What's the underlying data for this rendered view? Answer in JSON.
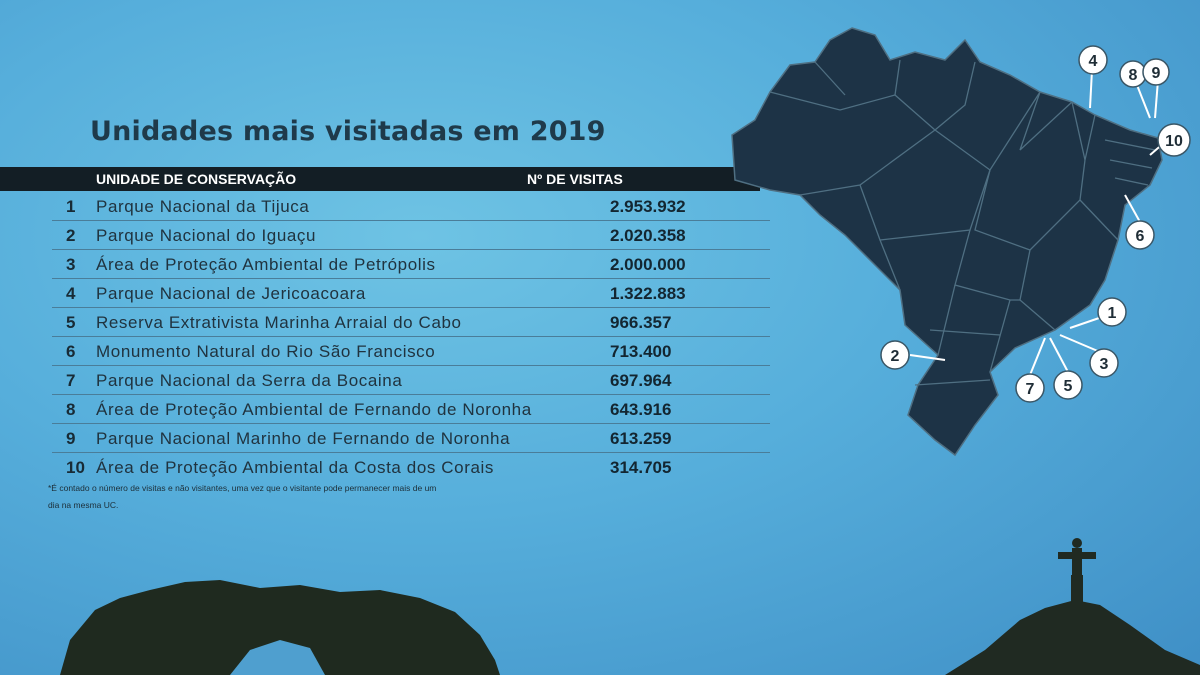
{
  "title": "Unidades mais visitadas em 2019",
  "table": {
    "col_unit": "UNIDADE DE CONSERVAÇÃO",
    "col_visits": "Nº DE VISITAS",
    "rows": [
      {
        "rank": "1",
        "name": "Parque Nacional da Tijuca",
        "visits": "2.953.932"
      },
      {
        "rank": "2",
        "name": "Parque Nacional do Iguaçu",
        "visits": "2.020.358"
      },
      {
        "rank": "3",
        "name": "Área de Proteção Ambiental de Petrópolis",
        "visits": "2.000.000"
      },
      {
        "rank": "4",
        "name": "Parque Nacional de Jericoacoara",
        "visits": "1.322.883"
      },
      {
        "rank": "5",
        "name": "Reserva Extrativista Marinha Arraial do Cabo",
        "visits": "966.357"
      },
      {
        "rank": "6",
        "name": "Monumento Natural do Rio São Francisco",
        "visits": "713.400"
      },
      {
        "rank": "7",
        "name": "Parque Nacional da Serra da Bocaina",
        "visits": "697.964"
      },
      {
        "rank": "8",
        "name": "Área de Proteção Ambiental de Fernando de Noronha",
        "visits": "643.916"
      },
      {
        "rank": "9",
        "name": "Parque Nacional Marinho de Fernando de Noronha",
        "visits": "613.259"
      },
      {
        "rank": "10",
        "name": "Área de Proteção Ambiental da Costa dos Corais",
        "visits": "314.705"
      }
    ]
  },
  "footnote": "*É contado o número de visitas e não visitantes, uma vez que o visitante pode permanecer mais de um dia na mesma UC.",
  "map": {
    "icon": "brazil-map",
    "markers": [
      "1",
      "2",
      "3",
      "4",
      "5",
      "6",
      "7",
      "8",
      "9",
      "10"
    ]
  },
  "colors": {
    "background": "#56aedb",
    "map_fill": "#1d3346",
    "header_bar": "#131e25",
    "title": "#1f3a4a"
  }
}
